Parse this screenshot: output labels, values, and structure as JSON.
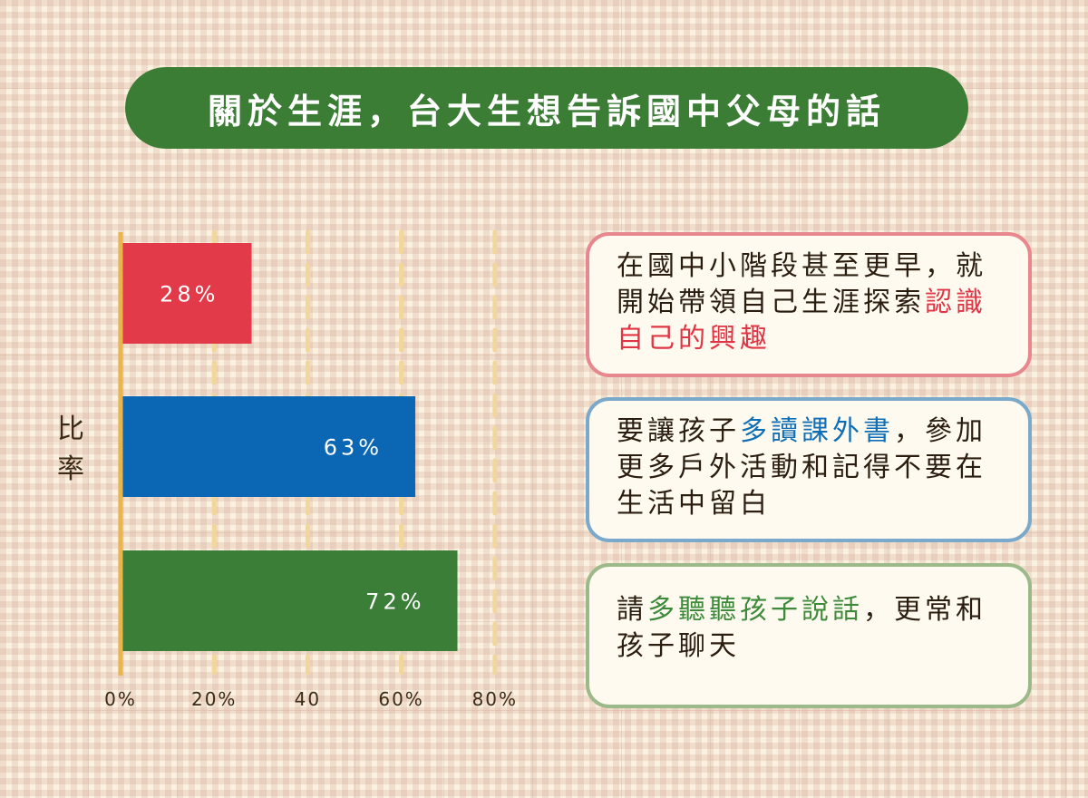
{
  "title": "關於生涯，台大生想告訴國中父母的話",
  "colors": {
    "title_bg": "#3c7d36",
    "axis": "#e8b54f",
    "gridline": "#f2d79a",
    "red": "#e23a48",
    "blue": "#0b67b3",
    "green": "#3a7e37"
  },
  "chart_data": {
    "type": "bar",
    "orientation": "horizontal",
    "categories": [
      "",
      "",
      ""
    ],
    "values": [
      28,
      63,
      72
    ],
    "value_labels": [
      "28%",
      "63%",
      "72%"
    ],
    "bar_colors": [
      "#e23a48",
      "#0b67b3",
      "#3a7e37"
    ],
    "xlim": [
      0,
      80
    ],
    "xticks": [
      0,
      20,
      40,
      60,
      80
    ],
    "xtick_labels": [
      "0%",
      "20%",
      "40",
      "60%",
      "80%"
    ],
    "ylabel": "比率",
    "grid": "vertical dashed"
  },
  "notes": [
    {
      "segments": [
        {
          "text": "在國中小階段甚至更早，就開始帶領自己生涯探索",
          "hl": false
        },
        {
          "text": "認識自己的興趣",
          "hl": true
        }
      ]
    },
    {
      "segments": [
        {
          "text": "要讓孩子",
          "hl": false
        },
        {
          "text": "多讀課外書",
          "hl": true
        },
        {
          "text": "，參加更多戶外活動和記得不要在生活中留白",
          "hl": false
        }
      ]
    },
    {
      "segments": [
        {
          "text": "請",
          "hl": false
        },
        {
          "text": "多聽聽孩子說話",
          "hl": true
        },
        {
          "text": "，更常和孩子聊天",
          "hl": false
        }
      ]
    }
  ]
}
